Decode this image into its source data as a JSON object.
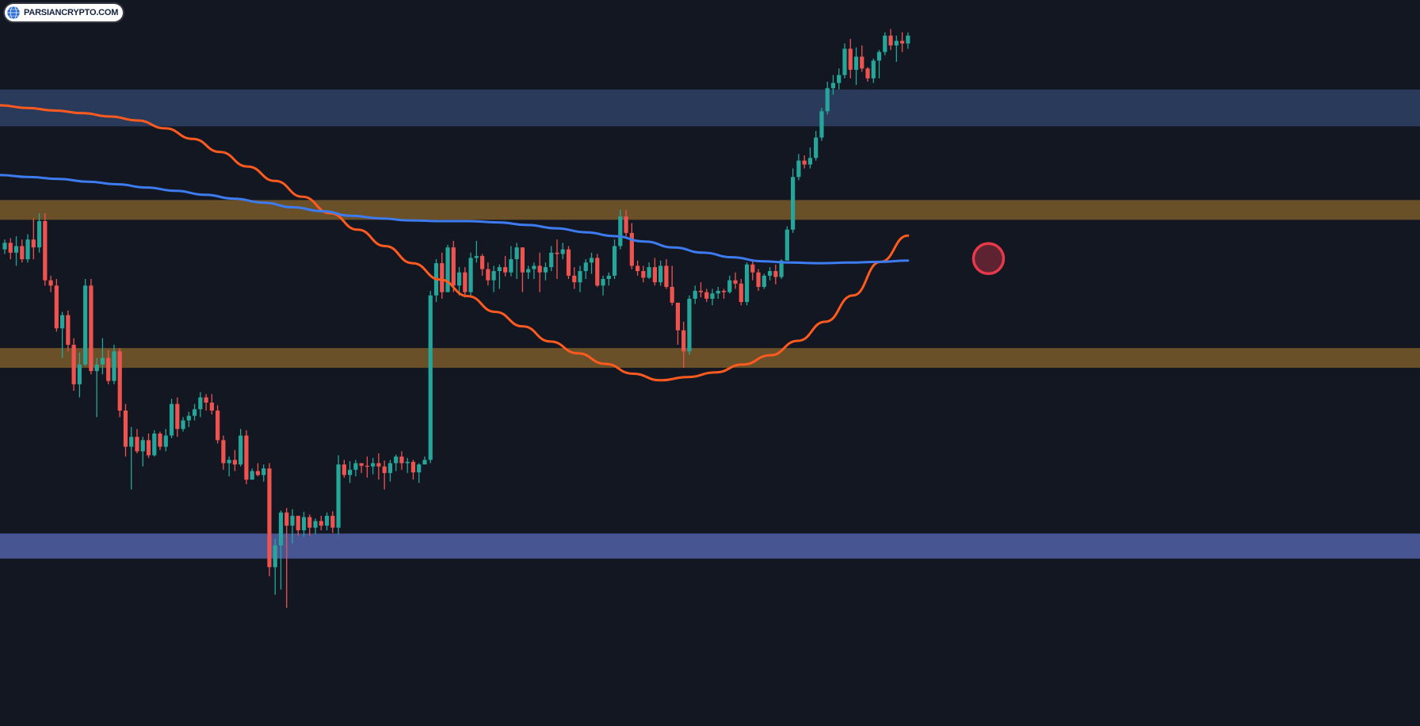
{
  "watermark": {
    "text": "PARSIANCRYPTO.COM",
    "icon": "globe-icon"
  },
  "colors": {
    "background": "#131722",
    "bull": "#26a69a",
    "bear": "#ef5350",
    "ema_fast": "#ff5a1f",
    "ema_slow": "#3d7bf0",
    "resistance_zone": "#2a3c5e",
    "support_zone": "#4a5a9a",
    "mid_zone": "#7a5a2a",
    "crossover_marker": "#e8394a"
  },
  "chart_data": {
    "type": "candlestick",
    "title": "",
    "xlabel": "",
    "ylabel": "",
    "price_scale_visible": false,
    "grid": false,
    "ylim": [
      0,
      1000
    ],
    "zones": [
      {
        "name": "upper-resistance-zone",
        "kind": "resistance",
        "from": 832,
        "to": 888
      },
      {
        "name": "upper-orange-zone",
        "kind": "mid",
        "from": 690,
        "to": 720
      },
      {
        "name": "lower-orange-zone",
        "kind": "mid",
        "from": 465,
        "to": 495
      },
      {
        "name": "lower-support-zone",
        "kind": "support",
        "from": 175,
        "to": 213
      }
    ],
    "candles": [
      [
        645,
        660,
        638,
        655
      ],
      [
        655,
        662,
        630,
        640
      ],
      [
        640,
        665,
        620,
        650
      ],
      [
        650,
        660,
        625,
        630
      ],
      [
        630,
        668,
        625,
        660
      ],
      [
        660,
        692,
        630,
        648
      ],
      [
        648,
        700,
        640,
        688
      ],
      [
        688,
        700,
        590,
        598
      ],
      [
        598,
        605,
        580,
        590
      ],
      [
        590,
        600,
        520,
        525
      ],
      [
        525,
        550,
        480,
        545
      ],
      [
        545,
        552,
        490,
        500
      ],
      [
        500,
        510,
        430,
        440
      ],
      [
        440,
        488,
        420,
        470
      ],
      [
        470,
        600,
        468,
        590
      ],
      [
        590,
        600,
        455,
        460
      ],
      [
        460,
        480,
        390,
        470
      ],
      [
        470,
        510,
        455,
        480
      ],
      [
        480,
        492,
        440,
        445
      ],
      [
        445,
        500,
        440,
        490
      ],
      [
        490,
        495,
        390,
        400
      ],
      [
        400,
        410,
        330,
        345
      ],
      [
        345,
        375,
        280,
        360
      ],
      [
        360,
        372,
        335,
        338
      ],
      [
        338,
        360,
        315,
        355
      ],
      [
        355,
        365,
        328,
        332
      ],
      [
        332,
        370,
        330,
        365
      ],
      [
        365,
        368,
        340,
        345
      ],
      [
        345,
        372,
        338,
        362
      ],
      [
        362,
        418,
        358,
        410
      ],
      [
        410,
        420,
        360,
        372
      ],
      [
        372,
        390,
        368,
        385
      ],
      [
        385,
        398,
        375,
        392
      ],
      [
        392,
        410,
        385,
        402
      ],
      [
        402,
        428,
        390,
        420
      ],
      [
        420,
        425,
        400,
        412
      ],
      [
        412,
        425,
        394,
        400
      ],
      [
        400,
        408,
        350,
        355
      ],
      [
        355,
        362,
        310,
        320
      ],
      [
        320,
        330,
        300,
        325
      ],
      [
        325,
        340,
        308,
        318
      ],
      [
        318,
        372,
        315,
        362
      ],
      [
        362,
        370,
        288,
        295
      ],
      [
        295,
        312,
        295,
        308
      ],
      [
        308,
        320,
        300,
        302
      ],
      [
        302,
        318,
        292,
        312
      ],
      [
        312,
        320,
        148,
        162
      ],
      [
        162,
        205,
        120,
        195
      ],
      [
        195,
        248,
        128,
        245
      ],
      [
        245,
        252,
        100,
        225
      ],
      [
        225,
        250,
        198,
        240
      ],
      [
        240,
        240,
        210,
        218
      ],
      [
        218,
        246,
        208,
        238
      ],
      [
        238,
        242,
        210,
        222
      ],
      [
        222,
        236,
        212,
        232
      ],
      [
        232,
        240,
        218,
        225
      ],
      [
        225,
        245,
        218,
        240
      ],
      [
        240,
        247,
        214,
        222
      ],
      [
        222,
        332,
        212,
        318
      ],
      [
        318,
        325,
        298,
        302
      ],
      [
        302,
        323,
        290,
        310
      ],
      [
        310,
        325,
        300,
        320
      ],
      [
        320,
        320,
        305,
        316
      ],
      [
        316,
        330,
        298,
        315
      ],
      [
        315,
        328,
        303,
        320
      ],
      [
        320,
        335,
        295,
        315
      ],
      [
        315,
        324,
        280,
        305
      ],
      [
        305,
        325,
        292,
        320
      ],
      [
        320,
        333,
        308,
        330
      ],
      [
        330,
        338,
        310,
        320
      ],
      [
        320,
        328,
        305,
        322
      ],
      [
        322,
        325,
        295,
        306
      ],
      [
        306,
        320,
        290,
        318
      ],
      [
        318,
        330,
        322,
        325
      ],
      [
        325,
        582,
        320,
        575
      ],
      [
        575,
        630,
        565,
        624
      ],
      [
        624,
        640,
        570,
        580
      ],
      [
        580,
        652,
        580,
        648
      ],
      [
        648,
        658,
        580,
        590
      ],
      [
        590,
        618,
        575,
        610
      ],
      [
        610,
        618,
        572,
        580
      ],
      [
        580,
        640,
        575,
        632
      ],
      [
        632,
        658,
        625,
        635
      ],
      [
        635,
        638,
        605,
        615
      ],
      [
        615,
        625,
        590,
        598
      ],
      [
        598,
        620,
        580,
        612
      ],
      [
        612,
        622,
        585,
        618
      ],
      [
        618,
        635,
        604,
        610
      ],
      [
        610,
        650,
        604,
        630
      ],
      [
        630,
        655,
        600,
        648
      ],
      [
        648,
        648,
        580,
        610
      ],
      [
        610,
        620,
        600,
        615
      ],
      [
        615,
        625,
        600,
        620
      ],
      [
        620,
        640,
        580,
        610
      ],
      [
        610,
        625,
        598,
        618
      ],
      [
        618,
        650,
        612,
        640
      ],
      [
        640,
        660,
        600,
        638
      ],
      [
        638,
        655,
        630,
        645
      ],
      [
        645,
        650,
        600,
        605
      ],
      [
        605,
        618,
        585,
        595
      ],
      [
        595,
        620,
        580,
        612
      ],
      [
        612,
        630,
        600,
        625
      ],
      [
        625,
        640,
        608,
        632
      ],
      [
        632,
        638,
        588,
        590
      ],
      [
        590,
        605,
        575,
        600
      ],
      [
        600,
        610,
        590,
        605
      ],
      [
        605,
        660,
        600,
        650
      ],
      [
        650,
        705,
        645,
        695
      ],
      [
        695,
        705,
        665,
        670
      ],
      [
        670,
        685,
        615,
        620
      ],
      [
        620,
        628,
        605,
        612
      ],
      [
        612,
        620,
        595,
        602
      ],
      [
        602,
        625,
        600,
        618
      ],
      [
        618,
        632,
        590,
        595
      ],
      [
        595,
        628,
        590,
        620
      ],
      [
        620,
        630,
        585,
        588
      ],
      [
        588,
        620,
        560,
        564
      ],
      [
        564,
        564,
        500,
        522
      ],
      [
        522,
        535,
        465,
        490
      ],
      [
        490,
        575,
        485,
        570
      ],
      [
        570,
        590,
        562,
        582
      ],
      [
        582,
        595,
        572,
        580
      ],
      [
        580,
        585,
        565,
        570
      ],
      [
        570,
        585,
        560,
        578
      ],
      [
        578,
        588,
        570,
        582
      ],
      [
        582,
        585,
        570,
        580
      ],
      [
        580,
        605,
        578,
        598
      ],
      [
        598,
        610,
        585,
        593
      ],
      [
        593,
        600,
        560,
        565
      ],
      [
        565,
        625,
        560,
        622
      ],
      [
        622,
        628,
        598,
        610
      ],
      [
        610,
        615,
        582,
        588
      ],
      [
        588,
        608,
        585,
        605
      ],
      [
        605,
        618,
        598,
        612
      ],
      [
        612,
        622,
        592,
        603
      ],
      [
        603,
        630,
        600,
        628
      ],
      [
        628,
        680,
        628,
        675
      ],
      [
        675,
        768,
        670,
        755
      ],
      [
        755,
        790,
        750,
        780
      ],
      [
        780,
        788,
        768,
        774
      ],
      [
        774,
        800,
        768,
        784
      ],
      [
        784,
        825,
        780,
        815
      ],
      [
        815,
        860,
        810,
        855
      ],
      [
        855,
        900,
        850,
        890
      ],
      [
        890,
        910,
        880,
        898
      ],
      [
        898,
        920,
        888,
        910
      ],
      [
        910,
        958,
        905,
        950
      ],
      [
        950,
        965,
        905,
        918
      ],
      [
        918,
        952,
        895,
        938
      ],
      [
        938,
        955,
        915,
        920
      ],
      [
        920,
        922,
        900,
        905
      ],
      [
        905,
        935,
        898,
        932
      ],
      [
        932,
        948,
        905,
        945
      ],
      [
        945,
        975,
        940,
        970
      ],
      [
        970,
        980,
        948,
        955
      ],
      [
        955,
        970,
        930,
        962
      ],
      [
        962,
        975,
        945,
        958
      ],
      [
        958,
        975,
        950,
        970
      ]
    ],
    "series": [
      {
        "name": "",
        "kind": "ema-fast",
        "values": [
          864,
          860,
          856,
          852,
          847,
          841,
          829,
          813,
          793,
          771,
          749,
          725,
          700,
          675,
          650,
          624,
          599,
          574,
          550,
          528,
          505,
          487,
          471,
          456,
          446,
          451,
          458,
          470,
          484,
          506,
          535,
          575,
          626,
          666
        ]
      },
      {
        "name": "",
        "kind": "ema-slow",
        "values": [
          758,
          755,
          752,
          748,
          744,
          739,
          734,
          728,
          722,
          716,
          709,
          703,
          696,
          692,
          689,
          688,
          688,
          686,
          682,
          677,
          671,
          665,
          657,
          648,
          640,
          633,
          627,
          625,
          624,
          625,
          626,
          628
        ]
      }
    ],
    "annotations": [
      {
        "type": "crossover-circle",
        "at_candle": 171,
        "price": 631
      }
    ]
  }
}
